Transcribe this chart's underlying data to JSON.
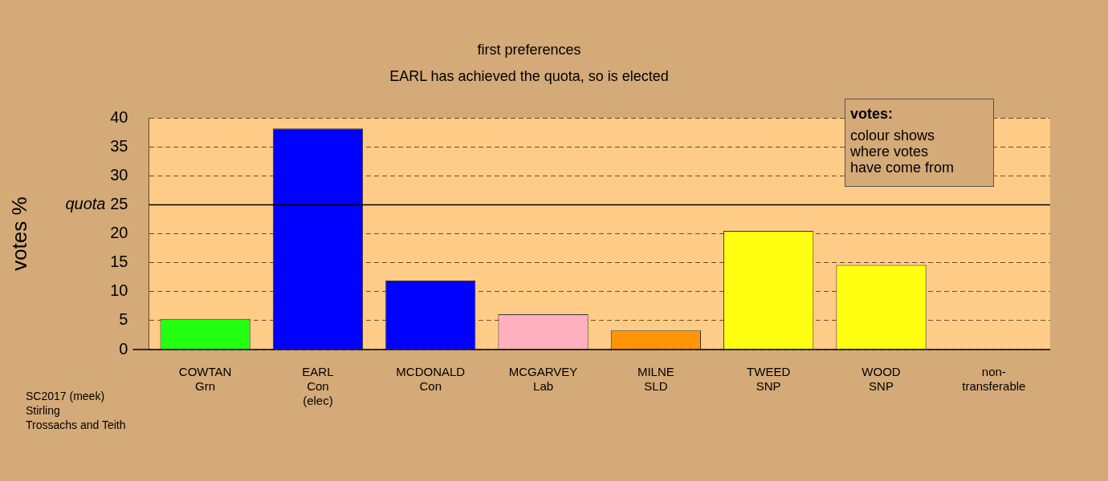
{
  "chart_data": {
    "type": "bar",
    "title": "first preferences",
    "subtitle": "EARL has achieved the quota, so is elected",
    "ylabel": "votes %",
    "categories": [
      "COWTAN\nGrn",
      "EARL\nCon\n(elec)",
      "MCDONALD\nCon",
      "MCGARVEY\nLab",
      "MILNE\nSLD",
      "TWEED\nSNP",
      "WOOD\nSNP",
      "non-\ntransferable"
    ],
    "values": [
      5.3,
      38.2,
      11.9,
      6.1,
      3.3,
      20.5,
      14.6,
      0
    ],
    "colors": [
      "#22ff11",
      "#0000ff",
      "#0000ff",
      "#ffb0c0",
      "#ff9408",
      "#ffff11",
      "#ffff11",
      "#808080"
    ],
    "ylim": [
      0,
      40
    ],
    "yticks": [
      0,
      5,
      10,
      15,
      20,
      25,
      30,
      35,
      40
    ],
    "grid": "y",
    "legend": false,
    "ref_lines": [
      {
        "axis": "y",
        "value": 25,
        "label": "quota",
        "color": "#000000"
      }
    ],
    "annotations": [
      "SC2017 (meek)\nStirling\nTrossachs and Teith",
      "votes:",
      "colour shows\nwhere votes\nhave come from"
    ]
  }
}
